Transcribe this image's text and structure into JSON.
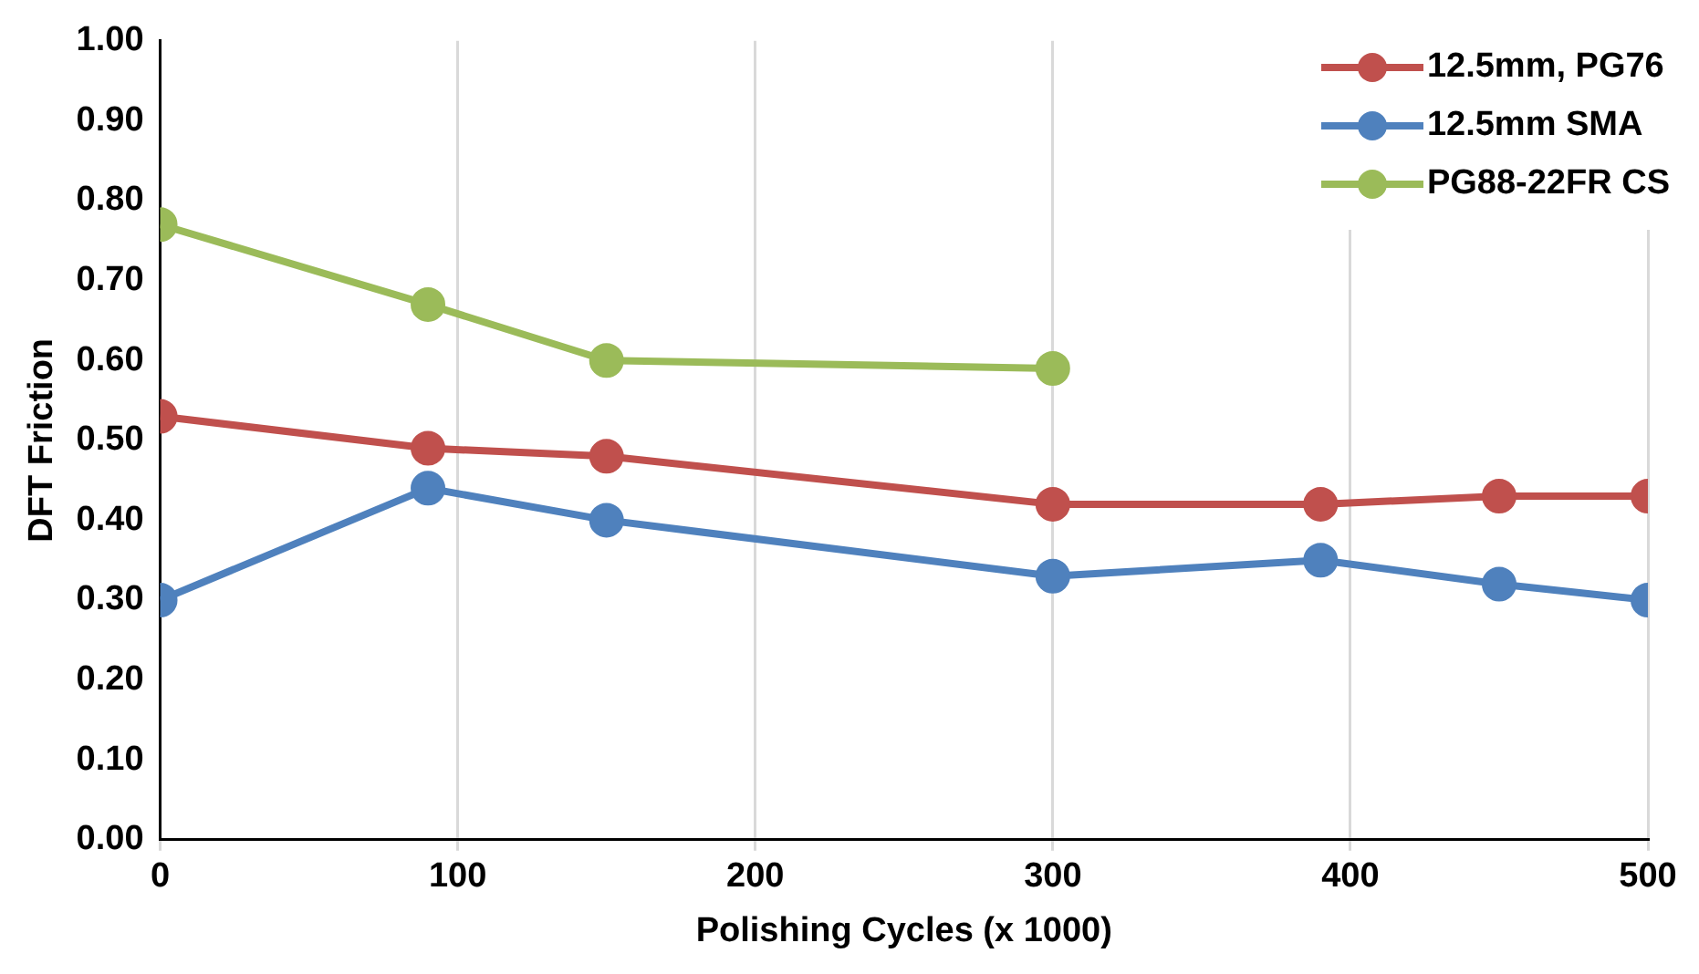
{
  "chart_data": {
    "type": "line",
    "xlabel": "Polishing Cycles (x 1000)",
    "ylabel": "DFT Friction",
    "x": [
      0,
      90,
      150,
      300,
      390,
      450,
      500
    ],
    "series": [
      {
        "name": "12.5mm, PG76",
        "color": "#c0504d",
        "values": [
          0.53,
          0.49,
          0.48,
          0.42,
          0.42,
          0.43,
          0.43
        ]
      },
      {
        "name": "12.5mm SMA",
        "color": "#4f81bd",
        "values": [
          0.3,
          0.44,
          0.4,
          0.33,
          0.35,
          0.32,
          0.3
        ]
      },
      {
        "name": "PG88-22FR CS",
        "color": "#9bbb59",
        "x": [
          0,
          90,
          150,
          300
        ],
        "values": [
          0.77,
          0.67,
          0.6,
          0.59
        ]
      }
    ],
    "xlim": [
      0,
      500
    ],
    "xticks": [
      0,
      100,
      200,
      300,
      400,
      500
    ],
    "ylim": [
      0,
      1
    ],
    "yticks": [
      {
        "value": 0,
        "label": "0.00"
      },
      {
        "value": 0.1,
        "label": "0.10"
      },
      {
        "value": 0.2,
        "label": "0.20"
      },
      {
        "value": 0.3,
        "label": "0.30"
      },
      {
        "value": 0.4,
        "label": "0.40"
      },
      {
        "value": 0.5,
        "label": "0.50"
      },
      {
        "value": 0.6,
        "label": "0.60"
      },
      {
        "value": 0.7,
        "label": "0.70"
      },
      {
        "value": 0.8,
        "label": "0.80"
      },
      {
        "value": 0.9,
        "label": "0.90"
      },
      {
        "value": 1,
        "label": "1.00"
      }
    ],
    "grid": "x",
    "legend": "top right",
    "marker": "circle",
    "line_style": "solid"
  }
}
